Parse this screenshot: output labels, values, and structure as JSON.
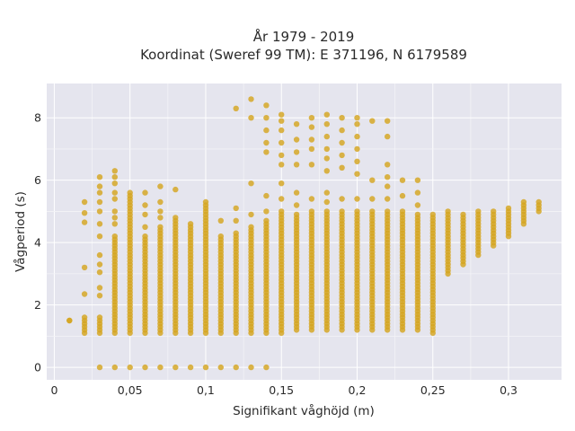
{
  "chart_data": {
    "type": "scatter",
    "title_line1": "År 1979 - 2019",
    "title_line2": "Koordinat (Sweref 99 TM): E 371196, N 6179589",
    "xlabel": "Signifikant våghöjd (m)",
    "ylabel": "Vågperiod (s)",
    "xlim": [
      -0.005,
      0.335
    ],
    "ylim": [
      -0.4,
      9.1
    ],
    "x_ticks": [
      {
        "value": 0,
        "label": "0"
      },
      {
        "value": 0.05,
        "label": "0,05"
      },
      {
        "value": 0.1,
        "label": "0,1"
      },
      {
        "value": 0.15,
        "label": "0,15"
      },
      {
        "value": 0.2,
        "label": "0,2"
      },
      {
        "value": 0.25,
        "label": "0,25"
      },
      {
        "value": 0.3,
        "label": "0,3"
      }
    ],
    "y_ticks": [
      {
        "value": 0,
        "label": "0"
      },
      {
        "value": 2,
        "label": "2"
      },
      {
        "value": 4,
        "label": "4"
      },
      {
        "value": 6,
        "label": "6"
      },
      {
        "value": 8,
        "label": "8"
      }
    ],
    "grid": true,
    "marker_color": "#D4A520",
    "background_color": "#E5E5EE",
    "columns": [
      {
        "x": 0.01,
        "y_min": 1.5,
        "y_max": 1.5,
        "sparse": [],
        "zero": false
      },
      {
        "x": 0.02,
        "y_min": 1.1,
        "y_max": 1.6,
        "sparse": [
          2.35,
          3.2,
          4.65,
          4.95,
          5.3
        ],
        "zero": false
      },
      {
        "x": 0.03,
        "y_min": 1.1,
        "y_max": 1.6,
        "sparse": [
          2.3,
          2.55,
          3.05,
          3.3,
          3.6,
          4.2,
          4.6,
          5.0,
          5.3,
          5.6,
          5.8,
          6.1
        ],
        "zero": true
      },
      {
        "x": 0.04,
        "y_min": 1.1,
        "y_max": 4.2,
        "sparse": [
          4.6,
          4.8,
          5.0,
          5.4,
          5.6,
          5.9,
          6.1,
          6.3
        ],
        "zero": true
      },
      {
        "x": 0.05,
        "y_min": 1.1,
        "y_max": 5.6,
        "sparse": [],
        "zero": true
      },
      {
        "x": 0.06,
        "y_min": 1.1,
        "y_max": 4.2,
        "sparse": [
          4.5,
          4.9,
          5.2,
          5.6
        ],
        "zero": true
      },
      {
        "x": 0.07,
        "y_min": 1.1,
        "y_max": 4.5,
        "sparse": [
          4.8,
          5.0,
          5.3,
          5.8
        ],
        "zero": true
      },
      {
        "x": 0.08,
        "y_min": 1.1,
        "y_max": 4.8,
        "sparse": [
          5.7
        ],
        "zero": true
      },
      {
        "x": 0.09,
        "y_min": 1.1,
        "y_max": 4.6,
        "sparse": [],
        "zero": true
      },
      {
        "x": 0.1,
        "y_min": 1.1,
        "y_max": 5.3,
        "sparse": [],
        "zero": true
      },
      {
        "x": 0.11,
        "y_min": 1.1,
        "y_max": 4.2,
        "sparse": [
          4.7
        ],
        "zero": true
      },
      {
        "x": 0.12,
        "y_min": 1.1,
        "y_max": 4.3,
        "sparse": [
          4.7,
          5.1,
          8.3
        ],
        "zero": true
      },
      {
        "x": 0.13,
        "y_min": 1.1,
        "y_max": 4.5,
        "sparse": [
          4.9,
          5.9,
          8.0,
          8.6
        ],
        "zero": true
      },
      {
        "x": 0.14,
        "y_min": 1.1,
        "y_max": 4.7,
        "sparse": [
          5.0,
          5.5,
          6.9,
          7.2,
          7.6,
          8.0,
          8.4
        ],
        "zero": true
      },
      {
        "x": 0.15,
        "y_min": 1.1,
        "y_max": 5.0,
        "sparse": [
          5.4,
          5.9,
          6.5,
          6.8,
          7.2,
          7.6,
          7.9,
          8.1
        ],
        "zero": false
      },
      {
        "x": 0.16,
        "y_min": 1.2,
        "y_max": 4.9,
        "sparse": [
          5.2,
          5.6,
          6.5,
          6.9,
          7.3,
          7.8
        ],
        "zero": false
      },
      {
        "x": 0.17,
        "y_min": 1.2,
        "y_max": 5.0,
        "sparse": [
          5.4,
          6.5,
          7.0,
          7.3,
          7.7,
          8.0
        ],
        "zero": false
      },
      {
        "x": 0.18,
        "y_min": 1.2,
        "y_max": 5.0,
        "sparse": [
          5.3,
          5.6,
          6.3,
          6.7,
          7.0,
          7.4,
          7.8,
          8.1
        ],
        "zero": false
      },
      {
        "x": 0.19,
        "y_min": 1.2,
        "y_max": 5.0,
        "sparse": [
          5.4,
          6.4,
          6.8,
          7.2,
          7.6,
          8.0
        ],
        "zero": false
      },
      {
        "x": 0.2,
        "y_min": 1.2,
        "y_max": 5.0,
        "sparse": [
          5.4,
          6.2,
          6.6,
          7.0,
          7.4,
          7.8,
          8.0
        ],
        "zero": false
      },
      {
        "x": 0.21,
        "y_min": 1.2,
        "y_max": 5.0,
        "sparse": [
          5.4,
          6.0,
          7.9
        ],
        "zero": false
      },
      {
        "x": 0.22,
        "y_min": 1.2,
        "y_max": 5.0,
        "sparse": [
          5.4,
          5.8,
          6.1,
          6.5,
          7.4,
          7.9
        ],
        "zero": false
      },
      {
        "x": 0.23,
        "y_min": 1.2,
        "y_max": 5.0,
        "sparse": [
          5.5,
          6.0
        ],
        "zero": false
      },
      {
        "x": 0.24,
        "y_min": 1.2,
        "y_max": 4.9,
        "sparse": [
          5.2,
          5.6,
          6.0
        ],
        "zero": false
      },
      {
        "x": 0.25,
        "y_min": 1.1,
        "y_max": 4.9,
        "sparse": [],
        "zero": false
      },
      {
        "x": 0.26,
        "y_min": 3.0,
        "y_max": 5.0,
        "sparse": [],
        "zero": false
      },
      {
        "x": 0.27,
        "y_min": 3.3,
        "y_max": 4.9,
        "sparse": [],
        "zero": false
      },
      {
        "x": 0.28,
        "y_min": 3.6,
        "y_max": 5.0,
        "sparse": [],
        "zero": false
      },
      {
        "x": 0.29,
        "y_min": 3.9,
        "y_max": 5.0,
        "sparse": [],
        "zero": false
      },
      {
        "x": 0.3,
        "y_min": 4.2,
        "y_max": 5.1,
        "sparse": [],
        "zero": false
      },
      {
        "x": 0.31,
        "y_min": 4.6,
        "y_max": 5.3,
        "sparse": [],
        "zero": false
      },
      {
        "x": 0.32,
        "y_min": 5.0,
        "y_max": 5.3,
        "sparse": [],
        "zero": false
      }
    ]
  }
}
